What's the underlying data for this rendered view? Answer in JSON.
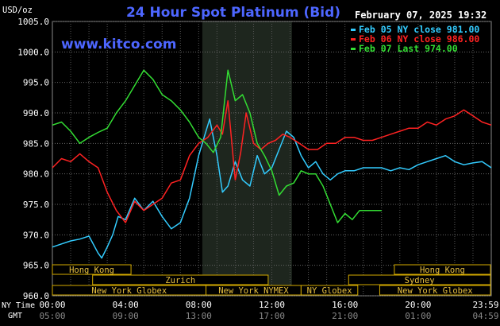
{
  "chart_data": {
    "type": "line",
    "title": "24 Hour Spot Platinum (Bid)",
    "timestamp": "February 07, 2025 19:32",
    "ylabel": "USD/oz",
    "watermark": "www.kitco.com",
    "ylim": [
      960,
      1005
    ],
    "xlim": [
      0,
      24
    ],
    "y_ticks": [
      "1005.0",
      "1000.0",
      "995.0",
      "990.0",
      "985.0",
      "980.0",
      "975.0",
      "970.0",
      "965.0",
      "960.0"
    ],
    "y_tick_values": [
      1005,
      1000,
      995,
      990,
      985,
      980,
      975,
      970,
      965,
      960
    ],
    "x_tick_values": [
      0,
      4,
      8,
      12,
      16,
      20,
      24
    ],
    "x_ticks_ny": [
      "00:00",
      "04:00",
      "08:00",
      "12:00",
      "16:00",
      "20:00",
      "23:59"
    ],
    "x_ticks_gmt": [
      "05:00",
      "09:00",
      "13:00",
      "17:00",
      "21:00",
      "01:00",
      "04:59"
    ],
    "row_label_ny": "NY Time",
    "row_label_gmt": "GMT",
    "shaded_region": [
      8.2,
      13.1
    ],
    "grid": true,
    "legend_position": "top-right",
    "legend": [
      {
        "label": "Feb 05 NY close 981.00",
        "color": "#33ccff"
      },
      {
        "label": "Feb 06 NY close 986.00",
        "color": "#ff2222"
      },
      {
        "label": "Feb 07 Last 974.00",
        "color": "#33dd33"
      }
    ],
    "sessions": [
      {
        "label": "Hong Kong",
        "start": 0,
        "end": 4.3
      },
      {
        "label": "Zurich",
        "start": 2.2,
        "end": 11.8
      },
      {
        "label": "New York Globex",
        "start": 0,
        "end": 8.4
      },
      {
        "label": "New York NYMEX",
        "start": 8.4,
        "end": 13.6
      },
      {
        "label": "NY Globex",
        "start": 13.6,
        "end": 16.7
      },
      {
        "label": "Hong Kong",
        "start": 18.7,
        "end": 24
      },
      {
        "label": "Sydney",
        "start": 16.2,
        "end": 24
      },
      {
        "label": "New York Globex",
        "start": 17.9,
        "end": 24
      }
    ],
    "series": [
      {
        "name": "Feb 05 NY close 981.00",
        "color": "#33ccff",
        "x": [
          0,
          0.5,
          1,
          1.5,
          2,
          2.5,
          2.7,
          3,
          3.3,
          3.6,
          4,
          4.5,
          5,
          5.5,
          6,
          6.5,
          7,
          7.5,
          8,
          8.3,
          8.6,
          9,
          9.3,
          9.6,
          10,
          10.4,
          10.8,
          11.2,
          11.6,
          12,
          12.4,
          12.8,
          13.2,
          13.6,
          14,
          14.4,
          14.8,
          15.2,
          15.6,
          16,
          16.5,
          17,
          17.5,
          18,
          18.5,
          19,
          19.5,
          20,
          20.5,
          21,
          21.5,
          22,
          22.5,
          23,
          23.5,
          24
        ],
        "y": [
          968,
          968.5,
          969,
          969.3,
          969.8,
          967,
          966.2,
          968,
          970,
          973,
          972.5,
          976,
          974,
          975.5,
          973,
          971,
          972,
          976,
          983,
          986,
          989,
          983,
          977,
          978,
          982,
          979,
          978,
          983,
          980,
          981,
          984,
          987,
          986,
          983,
          981,
          982,
          980,
          979,
          980,
          980.5,
          980.5,
          981,
          981,
          981,
          980.5,
          981,
          980.7,
          981.5,
          982,
          982.5,
          983,
          982,
          981.5,
          981.8,
          982,
          981
        ]
      },
      {
        "name": "Feb 06 NY close 986.00",
        "color": "#ff2222",
        "x": [
          0,
          0.5,
          1,
          1.5,
          2,
          2.5,
          3,
          3.5,
          4,
          4.5,
          5,
          5.5,
          6,
          6.5,
          7,
          7.5,
          8,
          8.5,
          9,
          9.3,
          9.6,
          10,
          10.3,
          10.6,
          11,
          11.4,
          11.8,
          12.2,
          12.6,
          13,
          13.5,
          14,
          14.5,
          15,
          15.5,
          16,
          16.5,
          17,
          17.5,
          18,
          18.5,
          19,
          19.5,
          20,
          20.5,
          21,
          21.5,
          22,
          22.5,
          23,
          23.5,
          24
        ],
        "y": [
          981,
          982.5,
          982,
          983.3,
          982,
          981,
          977,
          974,
          972,
          975.5,
          974,
          975,
          976,
          978.5,
          979,
          983,
          985,
          986,
          988,
          986.5,
          992,
          979,
          983.5,
          990,
          985,
          984,
          985,
          985.5,
          986.5,
          986,
          985,
          984,
          984,
          985,
          985,
          986,
          986,
          985.5,
          985.5,
          986,
          986.5,
          987,
          987.5,
          987.5,
          988.5,
          988,
          989,
          989.5,
          990.5,
          989.5,
          988.5,
          988
        ]
      },
      {
        "name": "Feb 07 Last 974.00",
        "color": "#33dd33",
        "x": [
          0,
          0.5,
          1,
          1.5,
          2,
          2.5,
          3,
          3.5,
          4,
          4.5,
          5,
          5.5,
          6,
          6.5,
          7,
          7.5,
          8,
          8.4,
          8.8,
          9.2,
          9.6,
          10,
          10.4,
          10.8,
          11.2,
          11.6,
          12,
          12.4,
          12.8,
          13.2,
          13.6,
          14,
          14.4,
          14.8,
          15.2,
          15.6,
          16,
          16.4,
          16.8,
          17.2,
          17.6,
          18
        ],
        "y": [
          988,
          988.5,
          987,
          985,
          986,
          986.8,
          987.5,
          990,
          992,
          994.5,
          997,
          995.5,
          993,
          992,
          990.5,
          988.5,
          986,
          985,
          983.5,
          986,
          997,
          992,
          993,
          990,
          985,
          983,
          980.5,
          976.5,
          978,
          978.5,
          980.5,
          980,
          980,
          978,
          975,
          972,
          973.5,
          972.5,
          974,
          974,
          974,
          974
        ]
      }
    ]
  }
}
